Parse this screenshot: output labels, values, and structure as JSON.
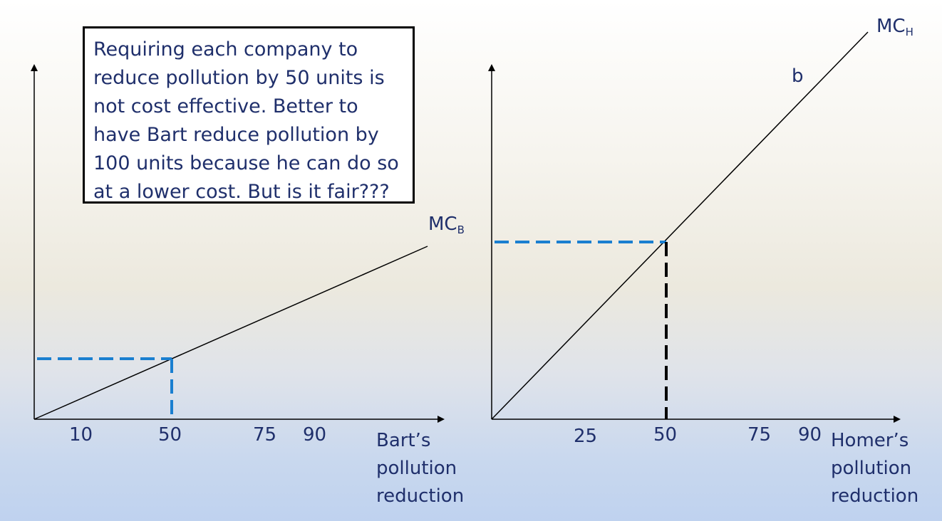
{
  "callout": {
    "line1": "Requiring each company to",
    "line2": "reduce pollution by 50 units is",
    "line3": "not cost effective. Better to",
    "line4": "have Bart reduce pollution by",
    "line5": "100 units because he can do so",
    "line6": "at a lower cost. But is it fair???"
  },
  "left_graph": {
    "curve_label": "MC",
    "curve_sub": "B",
    "ticks": [
      "10",
      "50",
      "75",
      "90"
    ],
    "x_title": [
      "Bart’s",
      "pollution",
      "reduction"
    ]
  },
  "right_graph": {
    "curve_label": "MC",
    "curve_sub": "H",
    "point_label": "b",
    "ticks": [
      "25",
      "50",
      "75",
      "90"
    ],
    "x_title": [
      "Homer’s",
      "pollution",
      "reduction"
    ]
  },
  "colors": {
    "text": "#1f2f6b",
    "dash_blue": "#1a7fd0",
    "dash_black": "#000000",
    "line": "#000000"
  }
}
